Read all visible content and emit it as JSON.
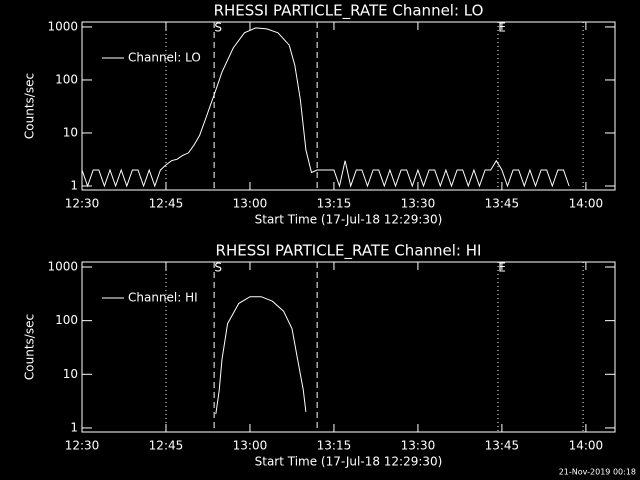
{
  "chart_data": [
    {
      "type": "line",
      "title": "RHESSI PARTICLE_RATE Channel: LO",
      "x_label": "Start Time (17-Jul-18 12:29:30)",
      "y_label": "Counts/sec",
      "log_y": true,
      "legend": "upper left",
      "color": "#ffffff",
      "xlim": [
        0,
        95.2
      ],
      "ylim": [
        0.84,
        1240
      ],
      "xticks": [
        {
          "value": 0,
          "label": "12:30"
        },
        {
          "value": 15,
          "label": "12:45"
        },
        {
          "value": 30,
          "label": "13:00"
        },
        {
          "value": 45,
          "label": "13:15"
        },
        {
          "value": 60,
          "label": "13:30"
        },
        {
          "value": 75,
          "label": "13:45"
        },
        {
          "value": 90,
          "label": "14:00"
        }
      ],
      "yticks": [
        1,
        10,
        100,
        1000
      ],
      "markers": [
        {
          "x": 15,
          "style": "dotted"
        },
        {
          "x": 23.6,
          "style": "dashed",
          "label": "S"
        },
        {
          "x": 42,
          "style": "dashed"
        },
        {
          "x": 74.3,
          "style": "dotted",
          "label": "E"
        },
        {
          "x": 89.5,
          "style": "dotted"
        }
      ],
      "series": [
        {
          "name": "Channel: LO",
          "color": "#ffffff",
          "x": [
            0,
            1,
            2,
            3,
            4,
            5,
            6,
            7,
            8,
            9,
            10,
            11,
            12,
            13,
            14,
            15,
            16,
            17,
            18,
            19,
            20,
            21,
            22,
            23,
            23.6,
            25,
            27,
            29,
            31,
            33,
            35,
            37,
            38,
            39,
            40,
            41,
            42,
            43,
            44,
            45,
            46,
            47,
            48,
            49,
            50,
            51,
            52,
            53,
            54,
            55,
            56,
            57,
            58,
            59,
            60,
            61,
            62,
            63,
            64,
            65,
            66,
            67,
            68,
            69,
            70,
            71,
            72,
            73,
            74,
            75,
            76,
            77,
            78,
            79,
            80,
            81,
            82,
            83,
            84,
            85,
            86,
            87
          ],
          "values": [
            2,
            1,
            2,
            2,
            1,
            2,
            1,
            2,
            1,
            2,
            2,
            1,
            2,
            1,
            2,
            2.5,
            3,
            3.2,
            3.8,
            4.2,
            5.9,
            9,
            17.6,
            35,
            52,
            141,
            400,
            775,
            960,
            920,
            775,
            455,
            190,
            42,
            4.8,
            1.8,
            2,
            2,
            2,
            2,
            1,
            3,
            1,
            2,
            2,
            1,
            2,
            2,
            1,
            2,
            1,
            2,
            2,
            1,
            2,
            1,
            2,
            2,
            1,
            2,
            1,
            2,
            2,
            1,
            2,
            1,
            2,
            2,
            3,
            2,
            1,
            2,
            2,
            1,
            2,
            1,
            2,
            2,
            1,
            2,
            2,
            1
          ]
        }
      ]
    },
    {
      "type": "line",
      "title": "RHESSI PARTICLE_RATE Channel: HI",
      "x_label": "Start Time (17-Jul-18 12:29:30)",
      "y_label": "Counts/sec",
      "log_y": true,
      "legend": "upper left",
      "color": "#ffffff",
      "xlim": [
        0,
        95.2
      ],
      "ylim": [
        0.84,
        1240
      ],
      "xticks": [
        {
          "value": 0,
          "label": "12:30"
        },
        {
          "value": 15,
          "label": "12:45"
        },
        {
          "value": 30,
          "label": "13:00"
        },
        {
          "value": 45,
          "label": "13:15"
        },
        {
          "value": 60,
          "label": "13:30"
        },
        {
          "value": 75,
          "label": "13:45"
        },
        {
          "value": 90,
          "label": "14:00"
        }
      ],
      "yticks": [
        1,
        10,
        100,
        1000
      ],
      "markers": [
        {
          "x": 15,
          "style": "dotted"
        },
        {
          "x": 23.6,
          "style": "dashed",
          "label": "S"
        },
        {
          "x": 42,
          "style": "dashed"
        },
        {
          "x": 74.3,
          "style": "dotted",
          "label": "E"
        },
        {
          "x": 89.5,
          "style": "dotted"
        }
      ],
      "series": [
        {
          "name": "Channel: HI",
          "color": "#ffffff",
          "x": [
            23.9,
            24.5,
            25,
            26,
            28,
            30,
            32,
            34,
            36,
            37.5,
            38.5,
            39.5,
            40
          ],
          "values": [
            1.8,
            5,
            19,
            88,
            210,
            280,
            280,
            230,
            150,
            71,
            19,
            5.2,
            2
          ]
        }
      ]
    }
  ],
  "footer": "21-Nov-2019 00:18"
}
